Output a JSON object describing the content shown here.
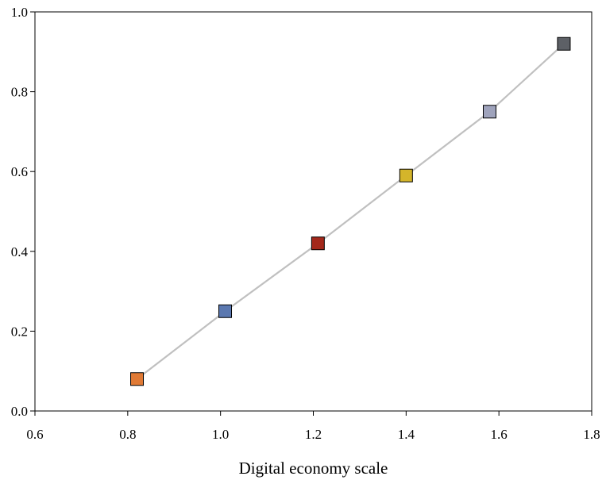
{
  "chart_data": {
    "type": "scatter",
    "title": "",
    "xlabel": "Digital economy scale",
    "ylabel": "",
    "xlim": [
      0.6,
      1.8
    ],
    "ylim": [
      0.0,
      1.0
    ],
    "xticks": [
      0.6,
      0.8,
      1.0,
      1.2,
      1.4,
      1.6,
      1.8
    ],
    "yticks": [
      0.0,
      0.2,
      0.4,
      0.6,
      0.8,
      1.0
    ],
    "xtick_labels": [
      "0.6",
      "0.8",
      "1.0",
      "1.2",
      "1.4",
      "1.6",
      "1.8"
    ],
    "ytick_labels": [
      "0.0",
      "0.2",
      "0.4",
      "0.6",
      "0.8",
      "1.0"
    ],
    "grid": false,
    "line_color": "#c0c0c0",
    "points": [
      {
        "x": 0.82,
        "y": 0.08,
        "color": "#e07a35"
      },
      {
        "x": 1.01,
        "y": 0.25,
        "color": "#5b78b0"
      },
      {
        "x": 1.21,
        "y": 0.42,
        "color": "#a3281b"
      },
      {
        "x": 1.4,
        "y": 0.59,
        "color": "#d4b52a"
      },
      {
        "x": 1.58,
        "y": 0.75,
        "color": "#9fa3bc"
      },
      {
        "x": 1.74,
        "y": 0.92,
        "color": "#5d6066"
      }
    ]
  }
}
